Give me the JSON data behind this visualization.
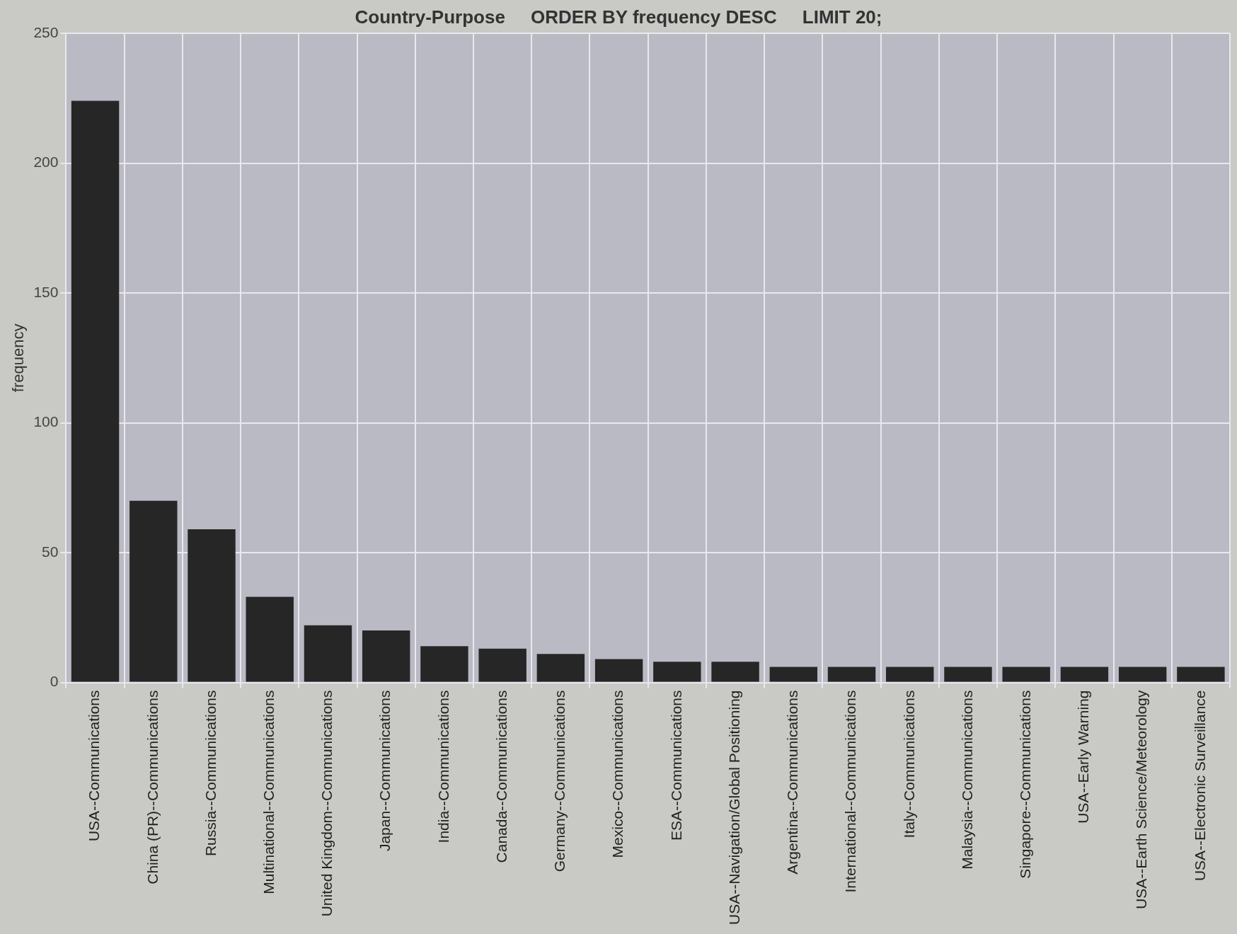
{
  "chart_data": {
    "type": "bar",
    "title": "Country-Purpose     ORDER BY frequency DESC     LIMIT 20;",
    "ylabel": "frequency",
    "categories": [
      "USA--Communications",
      "China (PR)--Communications",
      "Russia--Communications",
      "Multinational--Communications",
      "United Kingdom--Communications",
      "Japan--Communications",
      "India--Communications",
      "Canada--Communications",
      "Germany--Communications",
      "Mexico--Communications",
      "ESA--Communications",
      "USA--Navigation/Global Positioning",
      "Argentina--Communications",
      "International--Communications",
      "Italy--Communications",
      "Malaysia--Communications",
      "Singapore--Communications",
      "USA--Early Warning",
      "USA--Earth Science/Meteorology",
      "USA--Electronic Surveillance"
    ],
    "values": [
      224,
      70,
      59,
      33,
      22,
      20,
      14,
      13,
      11,
      9,
      8,
      8,
      6,
      6,
      6,
      6,
      6,
      6,
      6,
      6
    ],
    "color": "#262626",
    "ylim": [
      0,
      250
    ],
    "yticks": [
      0,
      50,
      100,
      150,
      200,
      250
    ],
    "grid": true
  }
}
